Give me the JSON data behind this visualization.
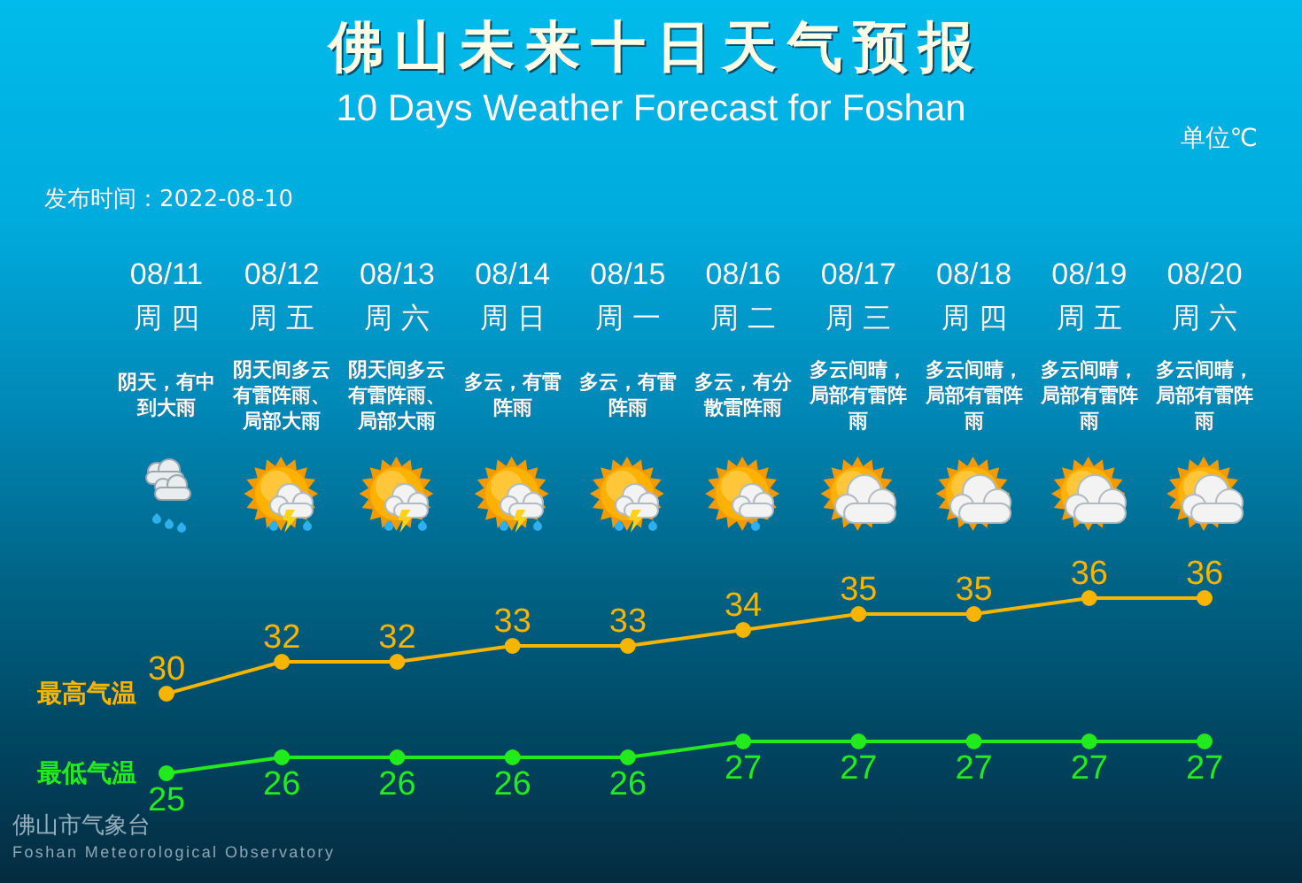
{
  "chart_data": {
    "type": "line",
    "title": "佛山未来十日天气预报",
    "subtitle": "10 Days Weather Forecast for Foshan",
    "categories": [
      "08/11",
      "08/12",
      "08/13",
      "08/14",
      "08/15",
      "08/16",
      "08/17",
      "08/18",
      "08/19",
      "08/20"
    ],
    "series": [
      {
        "name": "最高气温",
        "color": "#f7b500",
        "values": [
          30,
          32,
          32,
          33,
          33,
          34,
          35,
          35,
          36,
          36
        ]
      },
      {
        "name": "最低气温",
        "color": "#22ea1e",
        "values": [
          25,
          26,
          26,
          26,
          26,
          27,
          27,
          27,
          27,
          27
        ]
      }
    ],
    "data_labels": true,
    "marker": "circle",
    "line_style": "solid",
    "annotations": [
      "单位℃",
      "发布时间：2022-08-10",
      "周四",
      "周五",
      "周六",
      "周日",
      "周一",
      "周二",
      "周三",
      "周四",
      "周五",
      "周六",
      "阴天，有中到大雨",
      "阴天间多云有雷阵雨、局部大雨",
      "阴天间多云有雷阵雨、局部大雨",
      "多云，有雷阵雨",
      "多云，有雷阵雨",
      "多云，有分散雷阵雨",
      "多云间晴，局部有雷阵雨",
      "多云间晴，局部有雷阵雨",
      "多云间晴，局部有雷阵雨",
      "多云间晴，局部有雷阵雨",
      "佛山市气象台",
      "Foshan Meteorological Observatory"
    ]
  }
}
